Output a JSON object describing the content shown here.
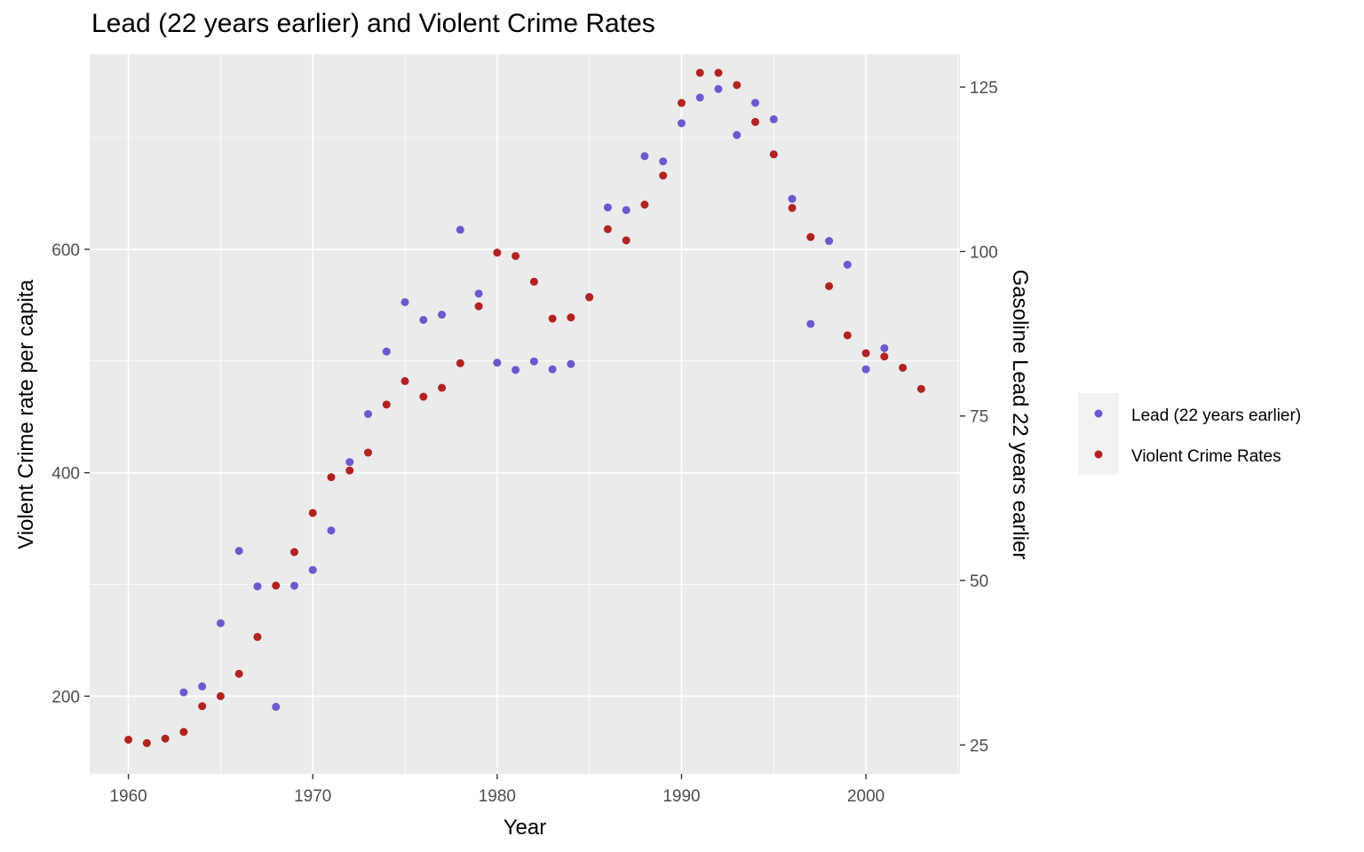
{
  "chart_data": {
    "type": "scatter",
    "title": "Lead (22 years earlier) and Violent Crime Rates",
    "xlabel": "Year",
    "ylabel": "Violent Crime rate per capita",
    "y2label": "Gasoline Lead 22 years earlier",
    "xlim": [
      1957.9,
      2005.1
    ],
    "ylim": [
      130.4,
      774.7
    ],
    "y2lim": [
      20.6,
      130.0
    ],
    "xticks": [
      1960,
      1970,
      1980,
      1990,
      2000
    ],
    "yticks": [
      200,
      400,
      600
    ],
    "y2ticks": [
      25,
      50,
      75,
      100,
      125
    ],
    "grid": true,
    "legend_position": "right",
    "series": [
      {
        "name": "Lead (22 years earlier)",
        "axis": "right",
        "color": "#6a5acd",
        "x": [
          1963,
          1964,
          1965,
          1966,
          1967,
          1968,
          1969,
          1970,
          1971,
          1972,
          1973,
          1974,
          1975,
          1976,
          1977,
          1978,
          1979,
          1980,
          1981,
          1982,
          1983,
          1984,
          1985,
          1986,
          1987,
          1988,
          1989,
          1990,
          1991,
          1992,
          1993,
          1994,
          1995,
          1996,
          1997,
          1998,
          1999,
          2000,
          2001
        ],
        "y": [
          33.0,
          33.9,
          43.5,
          54.5,
          49.1,
          30.8,
          49.2,
          51.6,
          57.6,
          68.0,
          75.3,
          84.8,
          92.3,
          89.6,
          90.4,
          103.3,
          93.6,
          83.1,
          82.0,
          83.3,
          82.1,
          82.9,
          93.1,
          106.7,
          106.3,
          114.5,
          113.7,
          119.5,
          123.4,
          124.7,
          117.7,
          122.6,
          120.1,
          108.0,
          89.0,
          101.6,
          98.0,
          82.1,
          85.3
        ]
      },
      {
        "name": "Violent Crime Rates",
        "axis": "left",
        "color": "#b22222",
        "x": [
          1960,
          1961,
          1962,
          1963,
          1964,
          1965,
          1966,
          1967,
          1968,
          1969,
          1970,
          1971,
          1972,
          1973,
          1974,
          1975,
          1976,
          1977,
          1978,
          1979,
          1980,
          1981,
          1982,
          1983,
          1984,
          1985,
          1986,
          1987,
          1988,
          1989,
          1990,
          1991,
          1992,
          1993,
          1994,
          1995,
          1996,
          1997,
          1998,
          1999,
          2000,
          2001,
          2002,
          2003
        ],
        "y": [
          161,
          158,
          162,
          168,
          191,
          200,
          220,
          253,
          299,
          329,
          364,
          396,
          402,
          418,
          461,
          482,
          468,
          476,
          498,
          549,
          597,
          594,
          571,
          538,
          539,
          557,
          618,
          608,
          640,
          666,
          731,
          758,
          758,
          747,
          714,
          685,
          637,
          611,
          567,
          523,
          507,
          504,
          494,
          475
        ]
      }
    ]
  }
}
